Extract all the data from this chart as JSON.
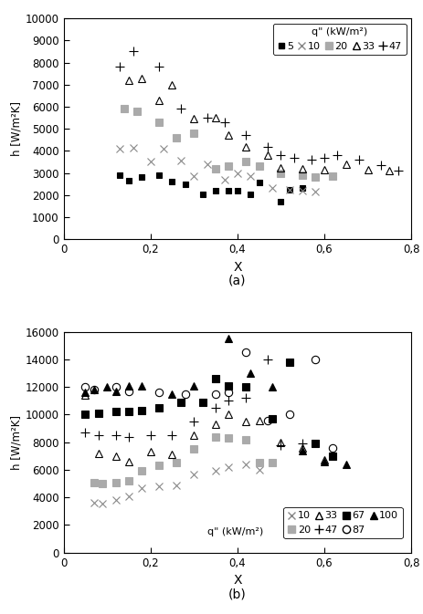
{
  "subplot_a": {
    "xlabel": "X",
    "ylabel": "h [W/m²K]",
    "xlim": [
      0,
      0.8
    ],
    "ylim": [
      0,
      10000
    ],
    "xticks": [
      0,
      0.2,
      0.4,
      0.6,
      0.8
    ],
    "yticks": [
      0,
      1000,
      2000,
      3000,
      4000,
      5000,
      6000,
      7000,
      8000,
      9000,
      10000
    ],
    "xtick_labels": [
      "0",
      "0,2",
      "0,4",
      "0,6",
      "0,8"
    ],
    "ytick_labels": [
      "0",
      "1000",
      "2000",
      "3000",
      "4000",
      "5000",
      "6000",
      "7000",
      "8000",
      "9000",
      "10000"
    ],
    "sublabel": "(a)",
    "series": {
      "q5": {
        "label": "5",
        "marker": "s",
        "color": "#000000",
        "markersize": 5,
        "markerfacecolor": "#000000",
        "x": [
          0.13,
          0.15,
          0.18,
          0.22,
          0.25,
          0.28,
          0.32,
          0.35,
          0.38,
          0.4,
          0.43,
          0.45,
          0.5,
          0.52,
          0.55
        ],
        "y": [
          2900,
          2650,
          2800,
          2900,
          2600,
          2500,
          2050,
          2200,
          2200,
          2200,
          2050,
          2550,
          1700,
          2250,
          2300
        ]
      },
      "q10": {
        "label": "10",
        "marker": "x",
        "color": "#888888",
        "markersize": 6,
        "markerfacecolor": "#888888",
        "x": [
          0.13,
          0.16,
          0.2,
          0.23,
          0.27,
          0.3,
          0.33,
          0.37,
          0.4,
          0.43,
          0.48,
          0.52,
          0.55,
          0.58
        ],
        "y": [
          4100,
          4150,
          3500,
          4100,
          3550,
          2850,
          3400,
          2700,
          3000,
          2850,
          2300,
          2250,
          2200,
          2150
        ]
      },
      "q20": {
        "label": "20",
        "marker": "s",
        "color": "#aaaaaa",
        "markersize": 6,
        "markerfacecolor": "#aaaaaa",
        "x": [
          0.14,
          0.17,
          0.22,
          0.26,
          0.3,
          0.35,
          0.38,
          0.42,
          0.45,
          0.5,
          0.55,
          0.58,
          0.62
        ],
        "y": [
          5900,
          5800,
          5300,
          4600,
          4800,
          3200,
          3300,
          3500,
          3300,
          3000,
          2900,
          2800,
          2850
        ]
      },
      "q33": {
        "label": "33",
        "marker": "^",
        "color": "#000000",
        "markersize": 6,
        "markerfacecolor": "none",
        "x": [
          0.15,
          0.18,
          0.22,
          0.25,
          0.3,
          0.35,
          0.38,
          0.42,
          0.47,
          0.5,
          0.55,
          0.6,
          0.65,
          0.7,
          0.75
        ],
        "y": [
          7200,
          7300,
          6300,
          7000,
          5450,
          5500,
          4700,
          4200,
          3800,
          3250,
          3200,
          3150,
          3400,
          3150,
          3100
        ]
      },
      "q47": {
        "label": "47",
        "marker": "+",
        "color": "#000000",
        "markersize": 7,
        "markerfacecolor": "#000000",
        "x": [
          0.13,
          0.16,
          0.22,
          0.27,
          0.33,
          0.37,
          0.42,
          0.47,
          0.5,
          0.53,
          0.57,
          0.6,
          0.63,
          0.68,
          0.73,
          0.77
        ],
        "y": [
          7800,
          8500,
          7800,
          5900,
          5500,
          5300,
          4700,
          4200,
          3800,
          3700,
          3600,
          3700,
          3800,
          3600,
          3350,
          3100
        ]
      }
    }
  },
  "subplot_b": {
    "xlabel": "X",
    "ylabel": "h [W/m²K]",
    "xlim": [
      0,
      0.8
    ],
    "ylim": [
      0,
      16000
    ],
    "xticks": [
      0,
      0.2,
      0.4,
      0.6,
      0.8
    ],
    "yticks": [
      0,
      2000,
      4000,
      6000,
      8000,
      10000,
      12000,
      14000,
      16000
    ],
    "xtick_labels": [
      "0",
      "0,2",
      "0,4",
      "0,6",
      "0,8"
    ],
    "ytick_labels": [
      "0",
      "2000",
      "4000",
      "6000",
      "8000",
      "10000",
      "12000",
      "14000",
      "16000"
    ],
    "sublabel": "(b)",
    "series": {
      "q10": {
        "label": "10",
        "marker": "x",
        "color": "#888888",
        "markersize": 6,
        "markerfacecolor": "#888888",
        "x": [
          0.07,
          0.09,
          0.12,
          0.15,
          0.18,
          0.22,
          0.26,
          0.3,
          0.35,
          0.38,
          0.42,
          0.45
        ],
        "y": [
          3600,
          3550,
          3800,
          4100,
          4700,
          4800,
          4900,
          5700,
          5900,
          6200,
          6400,
          6000
        ]
      },
      "q20": {
        "label": "20",
        "marker": "s",
        "color": "#aaaaaa",
        "markersize": 6,
        "markerfacecolor": "#aaaaaa",
        "x": [
          0.07,
          0.09,
          0.12,
          0.15,
          0.18,
          0.22,
          0.26,
          0.3,
          0.35,
          0.38,
          0.42,
          0.45,
          0.48
        ],
        "y": [
          5100,
          5000,
          5100,
          5200,
          5900,
          6300,
          6500,
          7500,
          8400,
          8300,
          8200,
          6500,
          6500
        ]
      },
      "q33": {
        "label": "33",
        "marker": "^",
        "color": "#000000",
        "markersize": 6,
        "markerfacecolor": "none",
        "x": [
          0.05,
          0.08,
          0.12,
          0.15,
          0.2,
          0.25,
          0.3,
          0.35,
          0.38,
          0.42,
          0.45,
          0.5,
          0.55,
          0.6
        ],
        "y": [
          11400,
          7200,
          7000,
          6600,
          7300,
          7100,
          8500,
          9300,
          10000,
          9500,
          9600,
          8000,
          7600,
          6700
        ]
      },
      "q47": {
        "label": "47",
        "marker": "+",
        "color": "#000000",
        "markersize": 7,
        "markerfacecolor": "#000000",
        "x": [
          0.05,
          0.08,
          0.12,
          0.15,
          0.2,
          0.25,
          0.3,
          0.35,
          0.38,
          0.42,
          0.47,
          0.5,
          0.55
        ],
        "y": [
          8700,
          8500,
          8500,
          8400,
          8500,
          8500,
          9500,
          10500,
          11000,
          11200,
          14000,
          7800,
          7900
        ]
      },
      "q67": {
        "label": "67",
        "marker": "s",
        "color": "#000000",
        "markersize": 6,
        "markerfacecolor": "#000000",
        "x": [
          0.05,
          0.08,
          0.12,
          0.15,
          0.18,
          0.22,
          0.27,
          0.32,
          0.35,
          0.38,
          0.42,
          0.48,
          0.52,
          0.58,
          0.62
        ],
        "y": [
          10000,
          10100,
          10200,
          10200,
          10300,
          10500,
          10900,
          10900,
          12600,
          12100,
          12000,
          9700,
          13800,
          7900,
          7000
        ]
      },
      "q87": {
        "label": "87",
        "marker": "o",
        "color": "#000000",
        "markersize": 6,
        "markerfacecolor": "none",
        "x": [
          0.05,
          0.07,
          0.12,
          0.15,
          0.22,
          0.28,
          0.35,
          0.38,
          0.42,
          0.47,
          0.52,
          0.58,
          0.62
        ],
        "y": [
          12000,
          11800,
          12000,
          11700,
          11600,
          11500,
          11500,
          11600,
          14500,
          9600,
          10000,
          14000,
          7600
        ]
      },
      "q100": {
        "label": "100",
        "marker": "^",
        "color": "#000000",
        "markersize": 6,
        "markerfacecolor": "#000000",
        "x": [
          0.05,
          0.07,
          0.1,
          0.12,
          0.15,
          0.18,
          0.25,
          0.3,
          0.38,
          0.43,
          0.48,
          0.55,
          0.6,
          0.65
        ],
        "y": [
          11600,
          11800,
          12000,
          11700,
          12100,
          12100,
          11500,
          12100,
          15500,
          13000,
          12000,
          7400,
          6600,
          6400
        ]
      }
    }
  }
}
